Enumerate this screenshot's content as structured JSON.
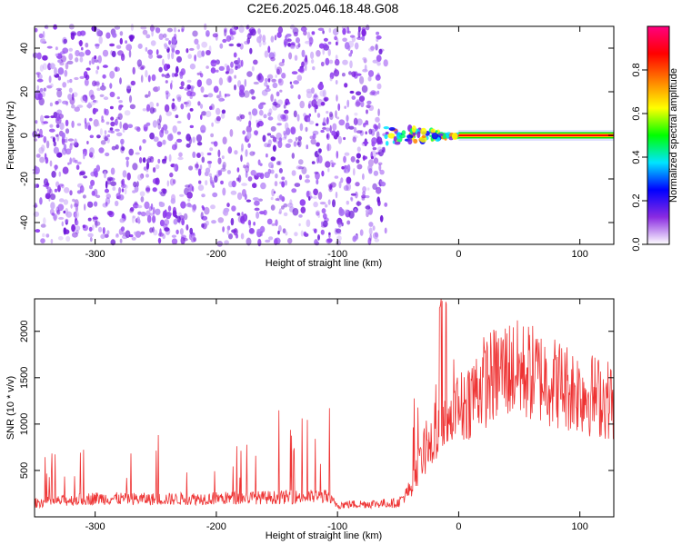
{
  "title": "C2E6.2025.046.18.48.G08",
  "colors": {
    "spectrogram_low": "#8a2be2",
    "spectrogram_band": "#e8403a",
    "snr_line": "#ee3333",
    "frame": "#000000"
  },
  "chart_data": [
    {
      "type": "heatmap",
      "xlabel": "Height of straight line (km)",
      "ylabel": "Frequency (Hz)",
      "xlim": [
        -350,
        128
      ],
      "ylim": [
        -50,
        50
      ],
      "xticks": [
        -300,
        -200,
        -100,
        0,
        100
      ],
      "yticks": [
        -40,
        -20,
        0,
        20,
        40
      ],
      "colorbar": {
        "label": "Normalized spectral amplitude",
        "range": [
          0,
          1
        ],
        "ticks": [
          "0.0",
          "0.2",
          "0.4",
          "0.6",
          "0.8"
        ],
        "colormap": [
          "#ffffff",
          "#8a2be2",
          "#0000ff",
          "#00e5ff",
          "#00ff00",
          "#ffff00",
          "#ff8000",
          "#ff0000",
          "#ff0080"
        ]
      },
      "noise_region_end_x": -60,
      "signal_band": {
        "x_start": -60,
        "x_end": 128,
        "frequency": 0
      },
      "grid": false
    },
    {
      "type": "line",
      "xlabel": "Height of straight line (km)",
      "ylabel": "SNR (10 * v/v)",
      "xlim": [
        -350,
        128
      ],
      "ylim": [
        0,
        2350
      ],
      "xticks": [
        -300,
        -200,
        -100,
        0,
        100
      ],
      "yticks": [
        500,
        1000,
        1500,
        2000
      ],
      "series": [
        {
          "color": "#ee3333",
          "x": [
            -350,
            -300,
            -250,
            -200,
            -150,
            -110,
            -100,
            -50,
            -40,
            -30,
            -20,
            -10,
            0,
            20,
            40,
            60,
            80,
            100,
            128
          ],
          "y": [
            150,
            200,
            190,
            200,
            210,
            220,
            130,
            150,
            300,
            650,
            800,
            1000,
            1150,
            1450,
            1600,
            1550,
            1450,
            1350,
            1250
          ]
        }
      ],
      "grid": false
    }
  ]
}
